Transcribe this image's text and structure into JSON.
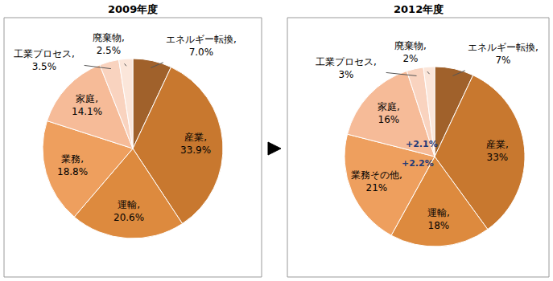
{
  "chart_data": [
    {
      "type": "pie",
      "title": "2009年度",
      "categories": [
        "エネルギー転換",
        "産業",
        "運輸",
        "業務",
        "家庭",
        "工業プロセス",
        "廃棄物"
      ],
      "values": [
        7.0,
        33.9,
        20.6,
        18.8,
        14.1,
        3.5,
        2.5
      ],
      "value_labels": [
        "エネルギー転換, 7.0%",
        "産業, 33.9%",
        "運輸, 20.6%",
        "業務, 18.8%",
        "家庭, 14.1%",
        "工業プロセス, 3.5%",
        "廃棄物, 2.5%"
      ],
      "data_labels": true,
      "colors": [
        "#a0612b",
        "#c8782f",
        "#dd8a3e",
        "#ee9f5e",
        "#f6bb98",
        "#f9d3bf",
        "#fbe6da"
      ]
    },
    {
      "type": "pie",
      "title": "2012年度",
      "categories": [
        "エネルギー転換",
        "産業",
        "運輸",
        "業務その他",
        "家庭",
        "工業プロセス",
        "廃棄物"
      ],
      "values": [
        7,
        33,
        18,
        21,
        16,
        3,
        2
      ],
      "value_labels": [
        "エネルギー転換, 7%",
        "産業, 33%",
        "運輸, 18%",
        "業務その他, 21%",
        "家庭, 16%",
        "工業プロセス, 3%",
        "廃棄物, 2%"
      ],
      "data_labels": true,
      "colors": [
        "#a0612b",
        "#c8782f",
        "#dd8a3e",
        "#ee9f5e",
        "#f6bb98",
        "#f9d3bf",
        "#fbe6da"
      ],
      "annotations": [
        {
          "text": "+2.1%",
          "category": "家庭"
        },
        {
          "text": "+2.2%",
          "category": "業務その他"
        }
      ]
    }
  ]
}
